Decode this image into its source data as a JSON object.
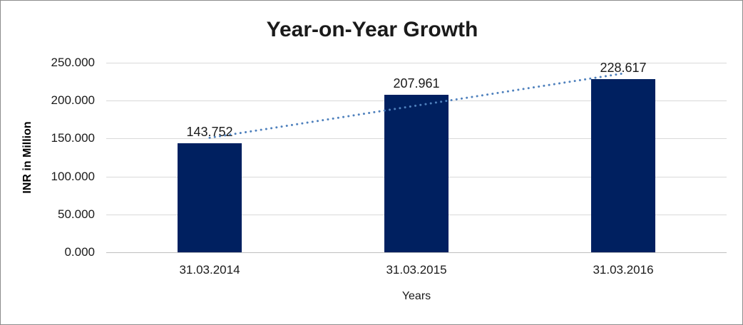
{
  "chart_data": {
    "type": "bar",
    "title": "Year-on-Year Growth",
    "xlabel": "Years",
    "ylabel": "INR in Million",
    "categories": [
      "31.03.2014",
      "31.03.2015",
      "31.03.2016"
    ],
    "values": [
      143.752,
      207.961,
      228.617
    ],
    "value_labels": [
      "143.752",
      "207.961",
      "228.617"
    ],
    "yticks": [
      0,
      50,
      100,
      150,
      200,
      250
    ],
    "ytick_labels": [
      "0.000",
      "50.000",
      "100.000",
      "150.000",
      "200.000",
      "250.000"
    ],
    "ylim": [
      0,
      250
    ],
    "grid": true,
    "legend": "none",
    "trendline": {
      "type": "linear",
      "style": "dotted"
    },
    "colors": {
      "bar": "#002060",
      "trendline": "#4F81BD",
      "gridline": "#D9D9D9",
      "axis": "#BFBFBF",
      "title_text": "#1a1a1a",
      "label_text": "#1a1a1a",
      "background": "#FFFFFF",
      "border": "#8C8C8C"
    }
  }
}
